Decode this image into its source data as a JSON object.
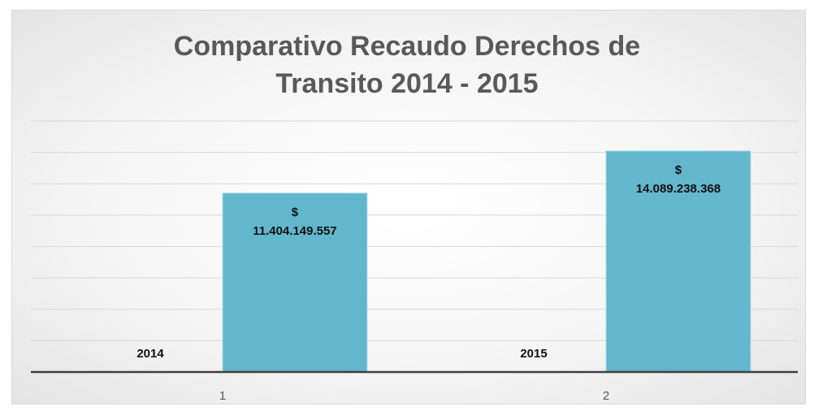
{
  "chart_data": {
    "type": "bar",
    "title": "Comparativo Recaudo Derechos de Transito 2014 - 2015",
    "categories": [
      "1",
      "2"
    ],
    "series": [
      {
        "color": "#63b7cc",
        "values": [
          2014,
          2015
        ]
      },
      {
        "color": "#63b7cc",
        "values": [
          11404149557,
          14089238368
        ],
        "value_labels": [
          "$ 11.404.149.557",
          "$ 14.089.238.368"
        ]
      }
    ],
    "ylim": [
      0,
      16000000000
    ],
    "yticks": [
      0,
      2000000000,
      4000000000,
      6000000000,
      8000000000,
      10000000000,
      12000000000,
      14000000000,
      16000000000
    ],
    "grid": true
  }
}
